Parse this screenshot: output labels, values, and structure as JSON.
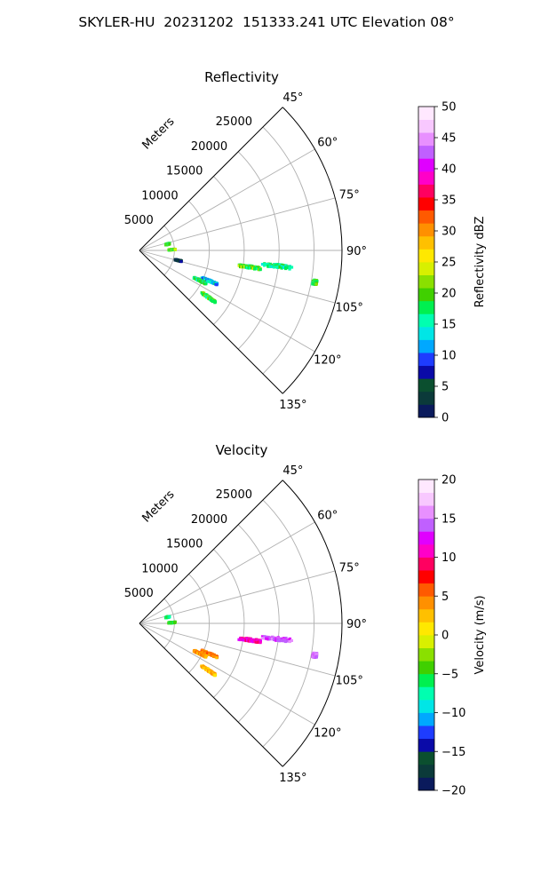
{
  "figure": {
    "title": "SKYLER-HU  20231202  151333.241 UTC Elevation 08°"
  },
  "chart_data": [
    {
      "type": "heatmap",
      "projection": "polar-sector",
      "title": "Reflectivity",
      "range_label": "Meters",
      "azimuth_range_deg": [
        45,
        135
      ],
      "range_limit_m": [
        0,
        25000
      ],
      "azimuth_ticks": [
        "45°",
        "60°",
        "75°",
        "90°",
        "105°",
        "120°",
        "135°"
      ],
      "range_ticks": [
        "5000",
        "10000",
        "15000",
        "20000",
        "25000"
      ],
      "grid": true,
      "colorbar": {
        "label": "Reflectivity dBZ",
        "min": 0,
        "max": 50,
        "ticks": [
          "0",
          "5",
          "10",
          "15",
          "20",
          "25",
          "30",
          "35",
          "40",
          "45",
          "50"
        ]
      },
      "echoes": [
        {
          "az_deg": 98,
          "range_m": [
            14200,
            17500
          ],
          "value": 20
        },
        {
          "az_deg": 96,
          "range_m": [
            17500,
            22000
          ],
          "value": 17
        },
        {
          "az_deg": 113,
          "range_m": [
            9500,
            12000
          ],
          "value": 13
        },
        {
          "az_deg": 116,
          "range_m": [
            8500,
            10500
          ],
          "value": 17
        },
        {
          "az_deg": 124,
          "range_m": [
            10500,
            13000
          ],
          "value": 19
        },
        {
          "az_deg": 103,
          "range_m": [
            5000,
            6000
          ],
          "value": 3
        },
        {
          "az_deg": 74,
          "range_m": [
            3700,
            4300
          ],
          "value": 19
        },
        {
          "az_deg": 86,
          "range_m": [
            4000,
            5000
          ],
          "value": 20
        },
        {
          "az_deg": 100,
          "range_m": [
            25000,
            25600
          ],
          "value": 18
        }
      ]
    },
    {
      "type": "heatmap",
      "projection": "polar-sector",
      "title": "Velocity",
      "range_label": "Meters",
      "azimuth_range_deg": [
        45,
        135
      ],
      "range_limit_m": [
        0,
        25000
      ],
      "azimuth_ticks": [
        "45°",
        "60°",
        "75°",
        "90°",
        "105°",
        "120°",
        "135°"
      ],
      "range_ticks": [
        "5000",
        "10000",
        "15000",
        "20000",
        "25000"
      ],
      "grid": true,
      "colorbar": {
        "label": "Velocity (m/s)",
        "min": -20,
        "max": 20,
        "ticks": [
          "−20",
          "−15",
          "−10",
          "−5",
          "0",
          "5",
          "10",
          "15",
          "20"
        ]
      },
      "echoes": [
        {
          "az_deg": 98,
          "range_m": [
            14200,
            17500
          ],
          "value": 11
        },
        {
          "az_deg": 96,
          "range_m": [
            17500,
            22000
          ],
          "value": 14
        },
        {
          "az_deg": 113,
          "range_m": [
            9500,
            12000
          ],
          "value": 5
        },
        {
          "az_deg": 116,
          "range_m": [
            8500,
            10500
          ],
          "value": 4
        },
        {
          "az_deg": 124,
          "range_m": [
            10500,
            13000
          ],
          "value": 3
        },
        {
          "az_deg": 74,
          "range_m": [
            3700,
            4300
          ],
          "value": -6
        },
        {
          "az_deg": 86,
          "range_m": [
            4000,
            5000
          ],
          "value": -5
        },
        {
          "az_deg": 100,
          "range_m": [
            25000,
            25600
          ],
          "value": 15
        }
      ]
    }
  ],
  "colors": {
    "axis": "#000000",
    "grid": "#b0b0b0",
    "reflectivity_stops": [
      "#0a1a5c",
      "#0b3a3a",
      "#0b4f2f",
      "#0a0aa8",
      "#1e3cff",
      "#00a8ff",
      "#00e6e6",
      "#00ffb0",
      "#00f050",
      "#40d000",
      "#8ae000",
      "#d8f000",
      "#ffe800",
      "#ffc000",
      "#ff9000",
      "#ff5a00",
      "#ff0000",
      "#ff0060",
      "#ff00c8",
      "#e000ff",
      "#c060ff",
      "#e890ff",
      "#f8c8ff",
      "#ffe8ff"
    ],
    "velocity_stops": [
      "#0a1a5c",
      "#0b3a3a",
      "#0b4f2f",
      "#0a0aa8",
      "#1e3cff",
      "#00a8ff",
      "#00e6e6",
      "#00ffb0",
      "#00f050",
      "#40d000",
      "#8ae000",
      "#d8f000",
      "#ffe800",
      "#ffc000",
      "#ff9000",
      "#ff5a00",
      "#ff0000",
      "#ff0060",
      "#ff00c8",
      "#e000ff",
      "#c060ff",
      "#e890ff",
      "#f8c8ff",
      "#ffe8ff"
    ]
  }
}
